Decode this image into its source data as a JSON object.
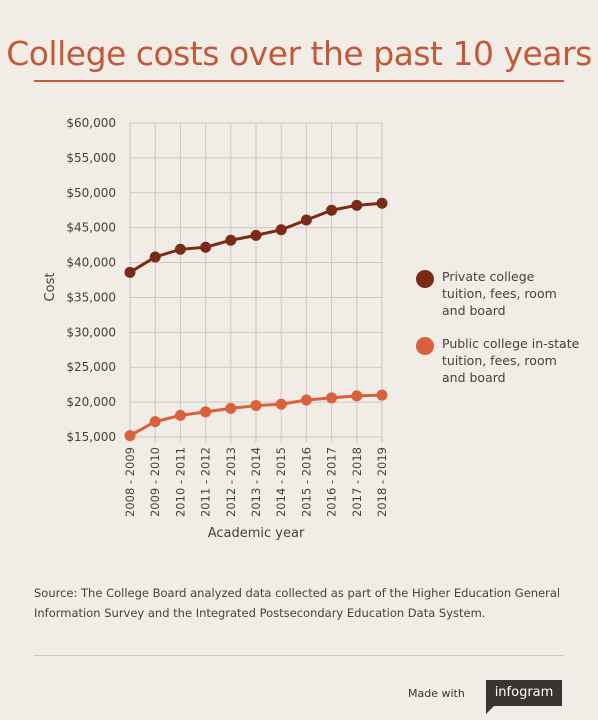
{
  "title": "College costs  over the past 10 years",
  "source": "Source: The College Board analyzed data collected as part of the Higher Education General Information Survey and the Integrated Postsecondary Education Data System.",
  "footer": {
    "made_with": "Made with",
    "brand": "infogram"
  },
  "colors": {
    "title": "#c05a3a",
    "private": "#7a2b17",
    "public": "#d9613e",
    "background": "#f1ece6"
  },
  "chart_data": {
    "type": "line",
    "title": "",
    "xlabel": "Academic year",
    "ylabel": "Cost",
    "ylim": [
      15000,
      60000
    ],
    "yticks": [
      "$15,000",
      "$20,000",
      "$25,000",
      "$30,000",
      "$35,000",
      "$40,000",
      "$45,000",
      "$50,000",
      "$55,000",
      "$60,000"
    ],
    "ytick_values": [
      15000,
      20000,
      25000,
      30000,
      35000,
      40000,
      45000,
      50000,
      55000,
      60000
    ],
    "grid": true,
    "legend_position": "right",
    "categories": [
      "2008 - 2009",
      "2009 - 2010",
      "2010 - 2011",
      "2011 - 2012",
      "2012 - 2013",
      "2013 - 2014",
      "2014 - 2015",
      "2015 - 2016",
      "2016 - 2017",
      "2017 - 2018",
      "2018 - 2019"
    ],
    "series": [
      {
        "name": "Private college tuition, fees, room and board",
        "color": "#7a2b17",
        "values": [
          38600,
          40800,
          41900,
          42200,
          43200,
          43900,
          44700,
          46100,
          47500,
          48200,
          48500
        ]
      },
      {
        "name": "Public college in-state tuition, fees, room and board",
        "color": "#d9613e",
        "values": [
          15200,
          17200,
          18100,
          18600,
          19100,
          19500,
          19700,
          20300,
          20600,
          20900,
          21000
        ]
      }
    ]
  }
}
